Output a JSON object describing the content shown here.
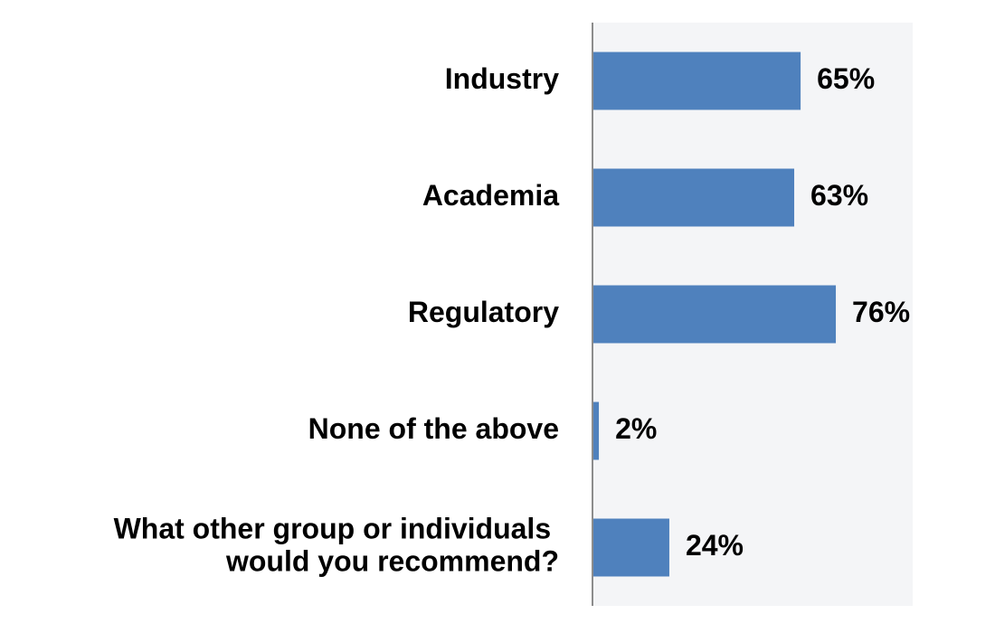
{
  "chart_data": {
    "type": "bar",
    "orientation": "horizontal",
    "categories": [
      "Industry",
      "Academia",
      "Regulatory",
      "None of the above",
      "What other group or individuals would you recommend?"
    ],
    "values": [
      65,
      63,
      76,
      2,
      24
    ],
    "value_labels": [
      "65%",
      "63%",
      "76%",
      "2%",
      "24%"
    ],
    "color": "#4f81bd",
    "xlim": [
      0,
      100
    ]
  }
}
